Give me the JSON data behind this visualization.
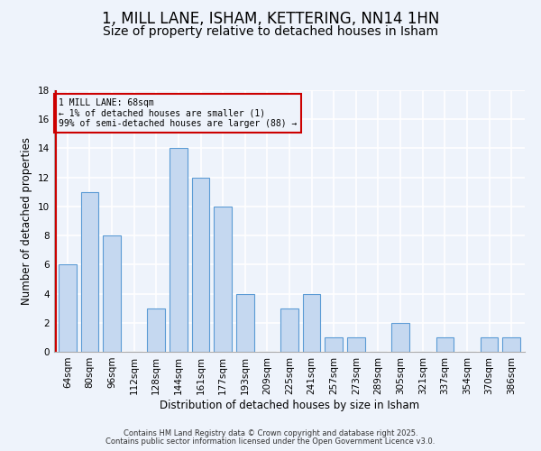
{
  "title": "1, MILL LANE, ISHAM, KETTERING, NN14 1HN",
  "subtitle": "Size of property relative to detached houses in Isham",
  "xlabel": "Distribution of detached houses by size in Isham",
  "ylabel": "Number of detached properties",
  "bar_labels": [
    "64sqm",
    "80sqm",
    "96sqm",
    "112sqm",
    "128sqm",
    "144sqm",
    "161sqm",
    "177sqm",
    "193sqm",
    "209sqm",
    "225sqm",
    "241sqm",
    "257sqm",
    "273sqm",
    "289sqm",
    "305sqm",
    "321sqm",
    "337sqm",
    "354sqm",
    "370sqm",
    "386sqm"
  ],
  "bar_values": [
    6,
    11,
    8,
    0,
    3,
    14,
    12,
    10,
    4,
    0,
    3,
    4,
    1,
    1,
    0,
    2,
    0,
    1,
    0,
    1,
    1
  ],
  "bar_color": "#c5d8f0",
  "bar_edge_color": "#5b9bd5",
  "background_color": "#eef3fb",
  "grid_color": "#d0d8e8",
  "annotation_box_edge_color": "#cc0000",
  "annotation_line1": "1 MILL LANE: 68sqm",
  "annotation_line2": "← 1% of detached houses are smaller (1)",
  "annotation_line3": "99% of semi-detached houses are larger (88) →",
  "ylim": [
    0,
    18
  ],
  "yticks": [
    0,
    2,
    4,
    6,
    8,
    10,
    12,
    14,
    16,
    18
  ],
  "footer1": "Contains HM Land Registry data © Crown copyright and database right 2025.",
  "footer2": "Contains public sector information licensed under the Open Government Licence v3.0.",
  "title_fontsize": 12,
  "subtitle_fontsize": 10,
  "axis_label_fontsize": 8.5,
  "tick_fontsize": 7.5,
  "footer_fontsize": 6.0
}
